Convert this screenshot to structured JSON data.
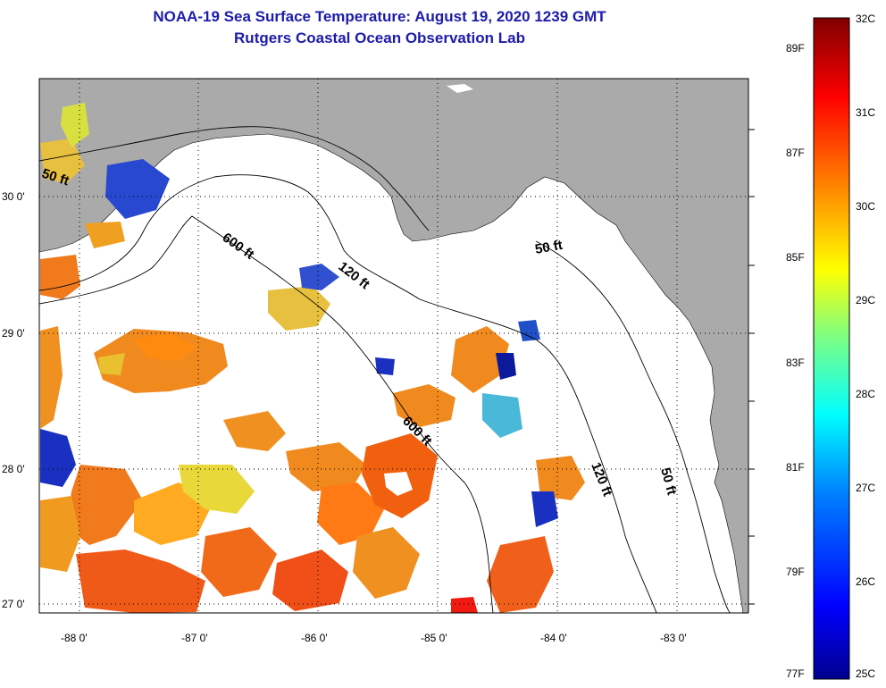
{
  "header": {
    "title": "NOAA-19 Sea Surface Temperature:  August 19, 2020 1239 GMT",
    "subtitle": "Rutgers Coastal Ocean Observation Lab"
  },
  "map": {
    "lat_labels": [
      "30 0'",
      "29 0'",
      "28 0'",
      "27 0'"
    ],
    "lon_labels": [
      "-88 0'",
      "-87 0'",
      "-86 0'",
      "-85 0'",
      "-84 0'",
      "-83 0'"
    ],
    "contours": [
      {
        "label": "50 ft",
        "depth_ft": 50
      },
      {
        "label": "600 ft",
        "depth_ft": 600
      },
      {
        "label": "120 ft",
        "depth_ft": 120
      },
      {
        "label": "50 ft",
        "depth_ft": 50
      },
      {
        "label": "600 ft",
        "depth_ft": 600
      },
      {
        "label": "120 ft",
        "depth_ft": 120
      },
      {
        "label": "50 ft",
        "depth_ft": 50
      }
    ],
    "colors": {
      "land": "#aaaaaa",
      "no_data": "#ffffff",
      "contour": "#000000",
      "grid": "#000000"
    }
  },
  "colorbar": {
    "max_c": "32C",
    "min_c": "25C",
    "max_f": "89F",
    "min_f": "77F",
    "celsius_labels": [
      "32C",
      "31C",
      "30C",
      "29C",
      "28C",
      "27C",
      "26C",
      "25C"
    ],
    "fahrenheit_labels": [
      "89F",
      "87F",
      "85F",
      "83F",
      "81F",
      "79F",
      "77F"
    ],
    "stops": [
      "#00008f",
      "#0000ff",
      "#0080ff",
      "#00ffff",
      "#80ff80",
      "#ffff00",
      "#ff8000",
      "#ff0000",
      "#800000"
    ]
  }
}
